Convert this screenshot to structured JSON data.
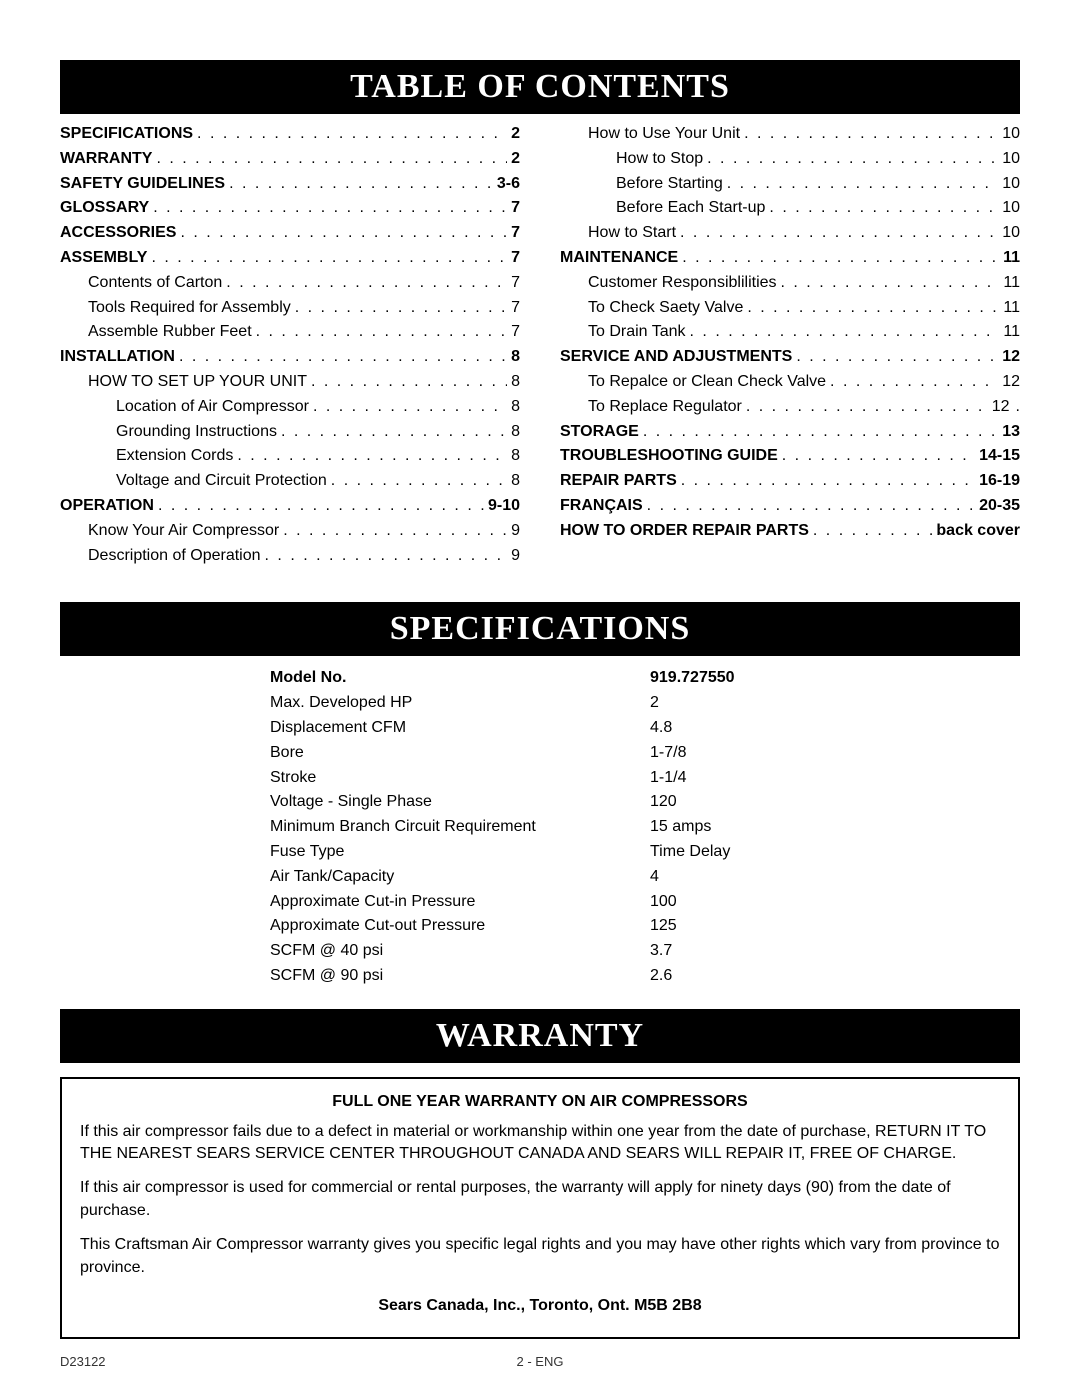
{
  "headers": {
    "toc": "TABLE OF CONTENTS",
    "specs": "SPECIFICATIONS",
    "warranty": "WARRANTY"
  },
  "toc": {
    "left": [
      {
        "label": "SPECIFICATIONS",
        "page": "2",
        "bold": true,
        "indent": 0
      },
      {
        "label": "WARRANTY",
        "page": "2",
        "bold": true,
        "indent": 0
      },
      {
        "label": "SAFETY GUIDELINES",
        "page": "3-6",
        "bold": true,
        "indent": 0
      },
      {
        "label": "GLOSSARY",
        "page": "7",
        "bold": true,
        "indent": 0
      },
      {
        "label": "ACCESSORIES",
        "page": "7",
        "bold": true,
        "indent": 0
      },
      {
        "label": "ASSEMBLY",
        "page": "7",
        "bold": true,
        "indent": 0
      },
      {
        "label": "Contents of Carton",
        "page": "7",
        "bold": false,
        "indent": 1
      },
      {
        "label": "Tools Required for Assembly",
        "page": "7",
        "bold": false,
        "indent": 1
      },
      {
        "label": "Assemble Rubber Feet",
        "page": "7",
        "bold": false,
        "indent": 1
      },
      {
        "label": "INSTALLATION",
        "page": "8",
        "bold": true,
        "indent": 0
      },
      {
        "label": "HOW TO SET UP YOUR UNIT",
        "page": "8",
        "bold": false,
        "indent": 1
      },
      {
        "label": "Location of Air Compressor",
        "page": "8",
        "bold": false,
        "indent": 2
      },
      {
        "label": "Grounding Instructions",
        "page": "8",
        "bold": false,
        "indent": 2
      },
      {
        "label": "Extension Cords",
        "page": "8",
        "bold": false,
        "indent": 2
      },
      {
        "label": "Voltage and Circuit Protection",
        "page": "8",
        "bold": false,
        "indent": 2
      },
      {
        "label": "OPERATION",
        "page": "9-10",
        "bold": true,
        "indent": 0
      },
      {
        "label": "Know Your Air Compressor",
        "page": "9",
        "bold": false,
        "indent": 1
      },
      {
        "label": "Description of Operation",
        "page": "9",
        "bold": false,
        "indent": 1
      }
    ],
    "right": [
      {
        "label": "How to Use Your Unit",
        "page": "10",
        "bold": false,
        "indent": 1
      },
      {
        "label": "How to Stop",
        "page": "10",
        "bold": false,
        "indent": 2
      },
      {
        "label": "Before Starting",
        "page": "10",
        "bold": false,
        "indent": 2
      },
      {
        "label": "Before Each Start-up",
        "page": "10",
        "bold": false,
        "indent": 2
      },
      {
        "label": "How to Start",
        "page": "10",
        "bold": false,
        "indent": 1
      },
      {
        "label": "MAINTENANCE",
        "page": "11",
        "bold": true,
        "indent": 0
      },
      {
        "label": "Customer Responsiblilities",
        "page": "11",
        "bold": false,
        "indent": 1
      },
      {
        "label": "To Check Saety Valve",
        "page": "11",
        "bold": false,
        "indent": 1
      },
      {
        "label": "To Drain Tank",
        "page": "11",
        "bold": false,
        "indent": 1
      },
      {
        "label": "SERVICE AND ADJUSTMENTS",
        "page": "12",
        "bold": true,
        "indent": 0
      },
      {
        "label": "To Repalce or Clean Check Valve",
        "page": "12",
        "bold": false,
        "indent": 1
      },
      {
        "label": "To Replace Regulator",
        "page": "12",
        "bold": false,
        "indent": 1,
        "extra": "   ."
      },
      {
        "label": "STORAGE",
        "page": "13",
        "bold": true,
        "indent": 0
      },
      {
        "label": "TROUBLESHOOTING GUIDE",
        "page": "14-15",
        "bold": true,
        "indent": 0
      },
      {
        "label": "REPAIR PARTS",
        "page": "16-19",
        "bold": true,
        "indent": 0
      },
      {
        "label": "FRANÇAIS",
        "page": "20-35",
        "bold": true,
        "indent": 0
      },
      {
        "label": "HOW TO ORDER REPAIR PARTS",
        "page": "back cover",
        "bold": true,
        "indent": 0
      }
    ]
  },
  "specs": {
    "header": {
      "label": "Model No.",
      "value": "919.727550"
    },
    "rows": [
      {
        "label": "Max. Developed HP",
        "value": "2"
      },
      {
        "label": "Displacement CFM",
        "value": "4.8"
      },
      {
        "label": "Bore",
        "value": "1-7/8"
      },
      {
        "label": "Stroke",
        "value": "1-1/4"
      },
      {
        "label": "Voltage - Single Phase",
        "value": "120"
      },
      {
        "label": "Minimum Branch Circuit Requirement",
        "value": "15 amps"
      },
      {
        "label": "Fuse Type",
        "value": "Time Delay"
      },
      {
        "label": "Air Tank/Capacity",
        "value": "4"
      },
      {
        "label": "Approximate Cut-in Pressure",
        "value": "100"
      },
      {
        "label": "Approximate Cut-out Pressure",
        "value": "125"
      },
      {
        "label": "SCFM @ 40 psi",
        "value": "3.7"
      },
      {
        "label": "SCFM @ 90 psi",
        "value": "2.6"
      }
    ]
  },
  "warranty": {
    "title": "FULL ONE YEAR WARRANTY ON AIR COMPRESSORS",
    "p1": "If this air compressor fails due to a defect in material or workmanship within one year from the date of purchase, RETURN IT TO THE NEAREST SEARS SERVICE CENTER THROUGHOUT CANADA AND SEARS WILL REPAIR IT, FREE OF CHARGE.",
    "p2": "If this air compressor is used for commercial or rental purposes, the warranty will apply for ninety days (90) from the date of purchase.",
    "p3": "This Craftsman Air Compressor warranty gives you specific legal rights and you may have other rights which vary from province to province.",
    "address": "Sears Canada, Inc., Toronto, Ont. M5B 2B8"
  },
  "footer": {
    "left": "D23122",
    "center": "2 - ENG"
  }
}
